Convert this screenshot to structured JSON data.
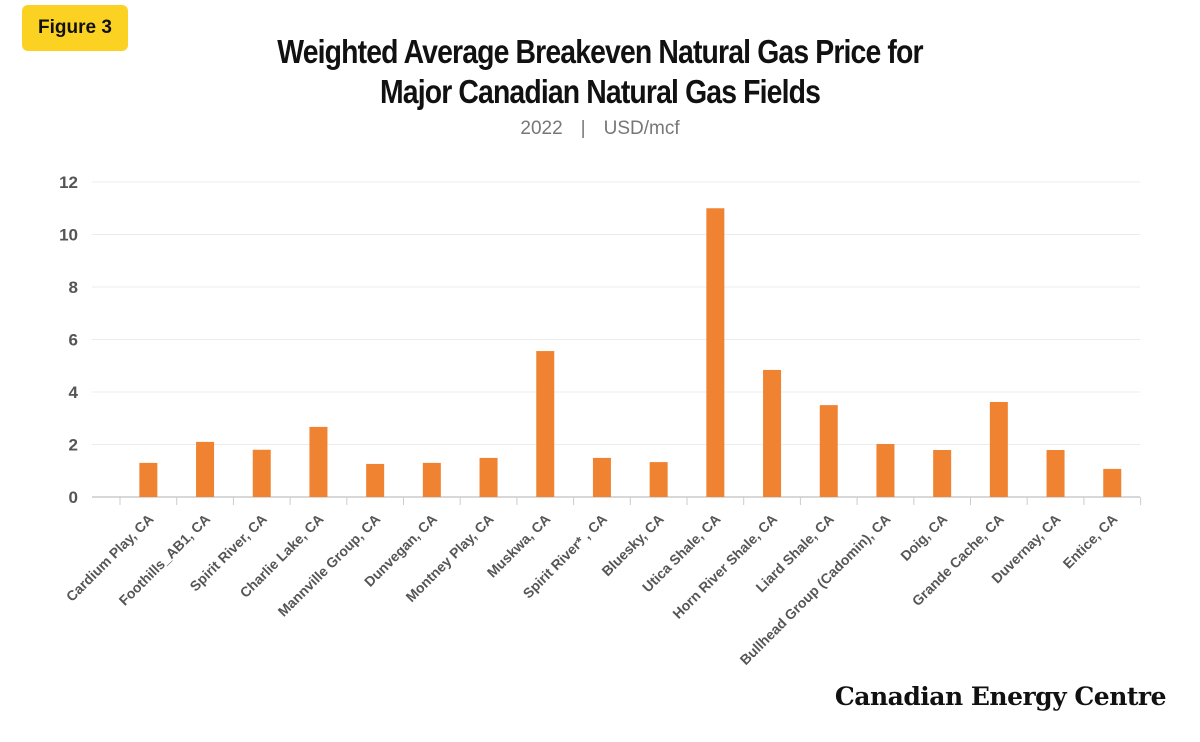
{
  "badge": "Figure 3",
  "title_line1": "Weighted Average Breakeven Natural Gas Price for",
  "title_line2": "Major Canadian Natural Gas Fields",
  "subtitle_year": "2022",
  "subtitle_sep": "|",
  "subtitle_unit": "USD/mcf",
  "logo": "Canadian Energy Centre",
  "chart_data": {
    "type": "bar",
    "title": "Weighted Average Breakeven Natural Gas Price for Major Canadian Natural Gas Fields",
    "subtitle": "2022 | USD/mcf",
    "categories": [
      "Cardium Play, CA",
      "Foothills_AB1, CA",
      "Spirit River, CA",
      "Charlie Lake, CA",
      "Mannville Group, CA",
      "Dunvegan, CA",
      "Montney Play, CA",
      "Muskwa, CA",
      "Spirit River* , CA",
      "Bluesky, CA",
      "Utica Shale, CA",
      "Horn River Shale, CA",
      "Liard Shale, CA",
      "Bullhead Group (Cadomin), CA",
      "Doig, CA",
      "Grande Cache, CA",
      "Duvernay, CA",
      "Entice, CA"
    ],
    "values": [
      1.3,
      2.1,
      1.8,
      2.67,
      1.26,
      1.3,
      1.49,
      5.56,
      1.49,
      1.33,
      11.0,
      4.84,
      3.5,
      2.02,
      1.79,
      3.62,
      1.79,
      1.07
    ],
    "ylim": [
      0,
      12
    ],
    "yticks": [
      0,
      2,
      4,
      6,
      8,
      10,
      12
    ],
    "grid": true,
    "bar_color": "#ef8332"
  }
}
